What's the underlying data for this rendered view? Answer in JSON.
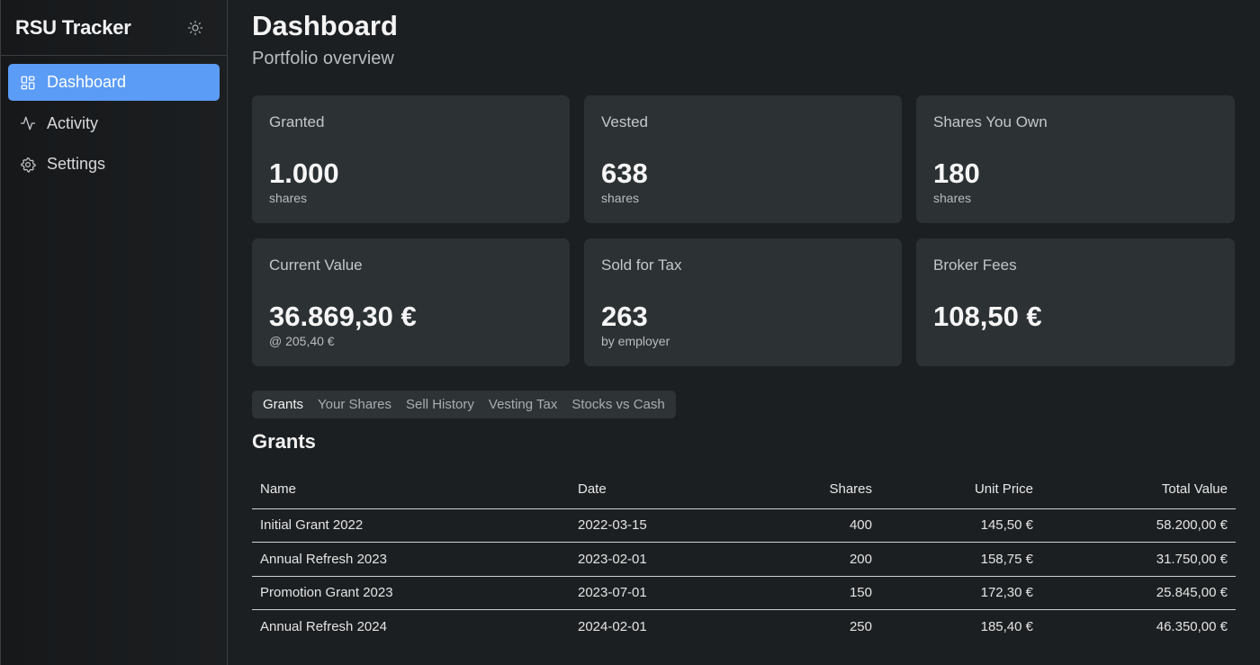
{
  "app": {
    "title": "RSU Tracker"
  },
  "sidebar": {
    "items": [
      {
        "label": "Dashboard",
        "icon": "dashboard-icon",
        "active": true
      },
      {
        "label": "Activity",
        "icon": "activity-icon",
        "active": false
      },
      {
        "label": "Settings",
        "icon": "gear-icon",
        "active": false
      }
    ]
  },
  "header": {
    "title": "Dashboard",
    "subtitle": "Portfolio overview"
  },
  "cards": [
    {
      "label": "Granted",
      "value": "1.000",
      "sub": "shares"
    },
    {
      "label": "Vested",
      "value": "638",
      "sub": "shares"
    },
    {
      "label": "Shares You Own",
      "value": "180",
      "sub": "shares"
    },
    {
      "label": "Current Value",
      "value": "36.869,30 €",
      "sub": "@ 205,40 €"
    },
    {
      "label": "Sold for Tax",
      "value": "263",
      "sub": "by employer"
    },
    {
      "label": "Broker Fees",
      "value": "108,50 €",
      "sub": ""
    }
  ],
  "tabs": [
    {
      "label": "Grants",
      "active": true
    },
    {
      "label": "Your Shares",
      "active": false
    },
    {
      "label": "Sell History",
      "active": false
    },
    {
      "label": "Vesting Tax",
      "active": false
    },
    {
      "label": "Stocks vs Cash",
      "active": false
    }
  ],
  "grants": {
    "title": "Grants",
    "columns": [
      "Name",
      "Date",
      "Shares",
      "Unit Price",
      "Total Value"
    ],
    "rows": [
      [
        "Initial Grant 2022",
        "2022-03-15",
        "400",
        "145,50 €",
        "58.200,00 €"
      ],
      [
        "Annual Refresh 2023",
        "2023-02-01",
        "200",
        "158,75 €",
        "31.750,00 €"
      ],
      [
        "Promotion Grant 2023",
        "2023-07-01",
        "150",
        "172,30 €",
        "25.845,00 €"
      ],
      [
        "Annual Refresh 2024",
        "2024-02-01",
        "250",
        "185,40 €",
        "46.350,00 €"
      ]
    ]
  },
  "colors": {
    "accent": "#5b9cf6",
    "card_bg": "#2c3134",
    "page_bg": "#1c1f21"
  }
}
